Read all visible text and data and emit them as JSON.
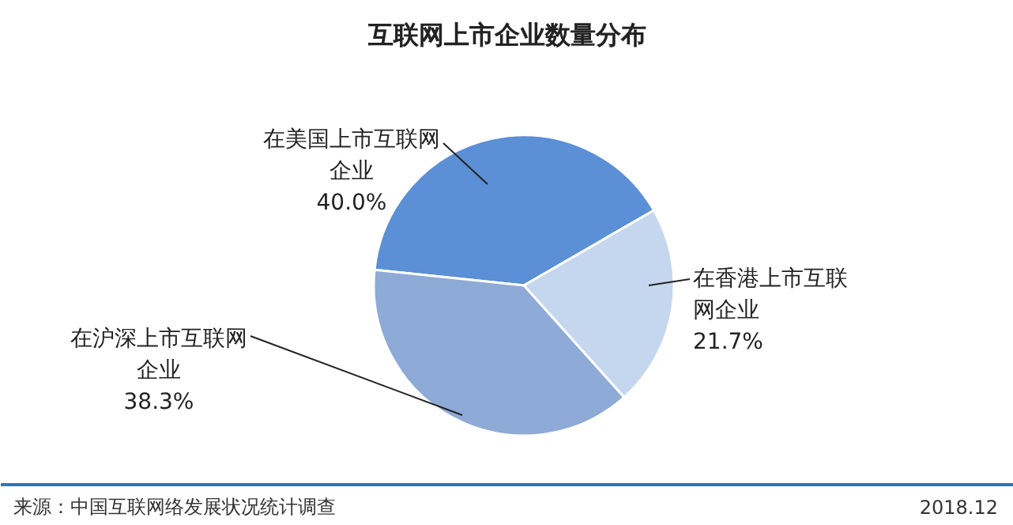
{
  "chart_data": {
    "type": "pie",
    "title": "互联网上市企业数量分布",
    "categories": [
      "在美国上市互联网企业",
      "在香港上市互联网企业",
      "在沪深上市互联网企业"
    ],
    "values": [
      40.0,
      21.7,
      38.3
    ],
    "value_labels": [
      "40.0%",
      "21.7%",
      "38.3%"
    ],
    "colors": [
      "#5b8fd6",
      "#c5d6ef",
      "#8eaad6"
    ],
    "annotations": [
      "来源：中国互联网络发展状况统计调查",
      "2018.12"
    ]
  }
}
